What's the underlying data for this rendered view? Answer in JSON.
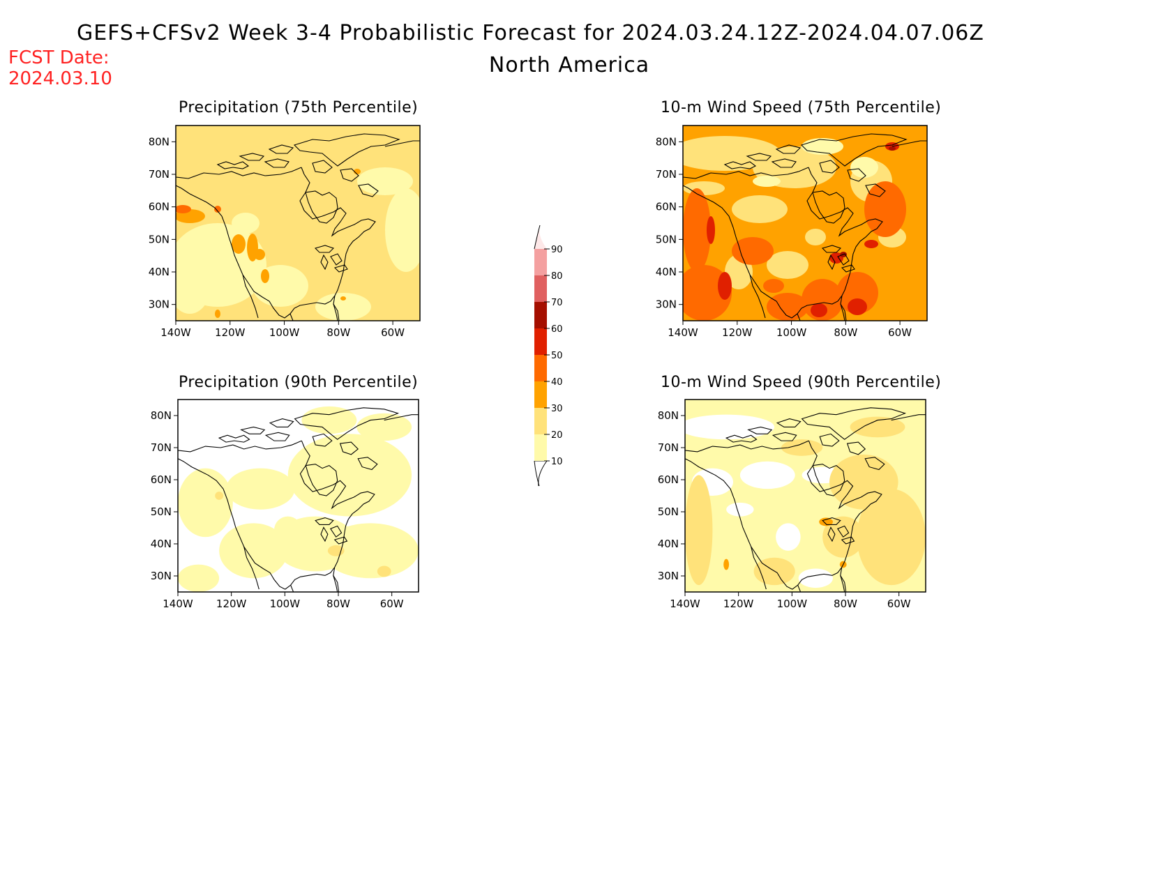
{
  "header": {
    "title": "GEFS+CFSv2 Week 3-4 Probabilistic Forecast for 2024.03.24.12Z-2024.04.07.06Z",
    "region": "North America",
    "fcst_date_label": "FCST Date:",
    "fcst_date": "2024.03.10"
  },
  "panels": [
    {
      "title": "Precipitation (75th Percentile)",
      "field": "precipitation",
      "percentile": 75,
      "dominant_category": "10-20 / 20-30 (light yellow to yellow)"
    },
    {
      "title": "10-m Wind Speed (75th Percentile)",
      "field": "wind_speed",
      "percentile": 75,
      "dominant_category": "30-40 / 40-50 (orange)"
    },
    {
      "title": "Precipitation (90th Percentile)",
      "field": "precipitation",
      "percentile": 90,
      "dominant_category": "0-10 / 10-20 (white to light yellow)"
    },
    {
      "title": "10-m Wind Speed (90th Percentile)",
      "field": "wind_speed",
      "percentile": 90,
      "dominant_category": "10-20 / 20-30 (light yellow)"
    }
  ],
  "axes": {
    "lon_labels": [
      "140W",
      "120W",
      "100W",
      "80W",
      "60W"
    ],
    "lat_labels": [
      "30N",
      "40N",
      "50N",
      "60N",
      "70N",
      "80N"
    ]
  },
  "colorbar": {
    "labels": [
      "10",
      "20",
      "30",
      "40",
      "50",
      "60",
      "70",
      "80",
      "90"
    ],
    "colors": [
      "#fffaaa",
      "#ffe27a",
      "#ffa200",
      "#ff6a00",
      "#e02000",
      "#a50f00",
      "#e06060",
      "#f4a0a0",
      "#fde8e8"
    ]
  },
  "chart_data": {
    "type": "heatmap",
    "title": "GEFS+CFSv2 Week 3-4 Probabilistic Forecast for 2024.03.24.12Z-2024.04.07.06Z",
    "subtitle": "North America",
    "x_range_lon": [
      -140,
      -50
    ],
    "y_range_lat": [
      25,
      85
    ],
    "contour_levels": [
      10,
      20,
      30,
      40,
      50,
      60,
      70,
      80,
      90
    ]
  }
}
